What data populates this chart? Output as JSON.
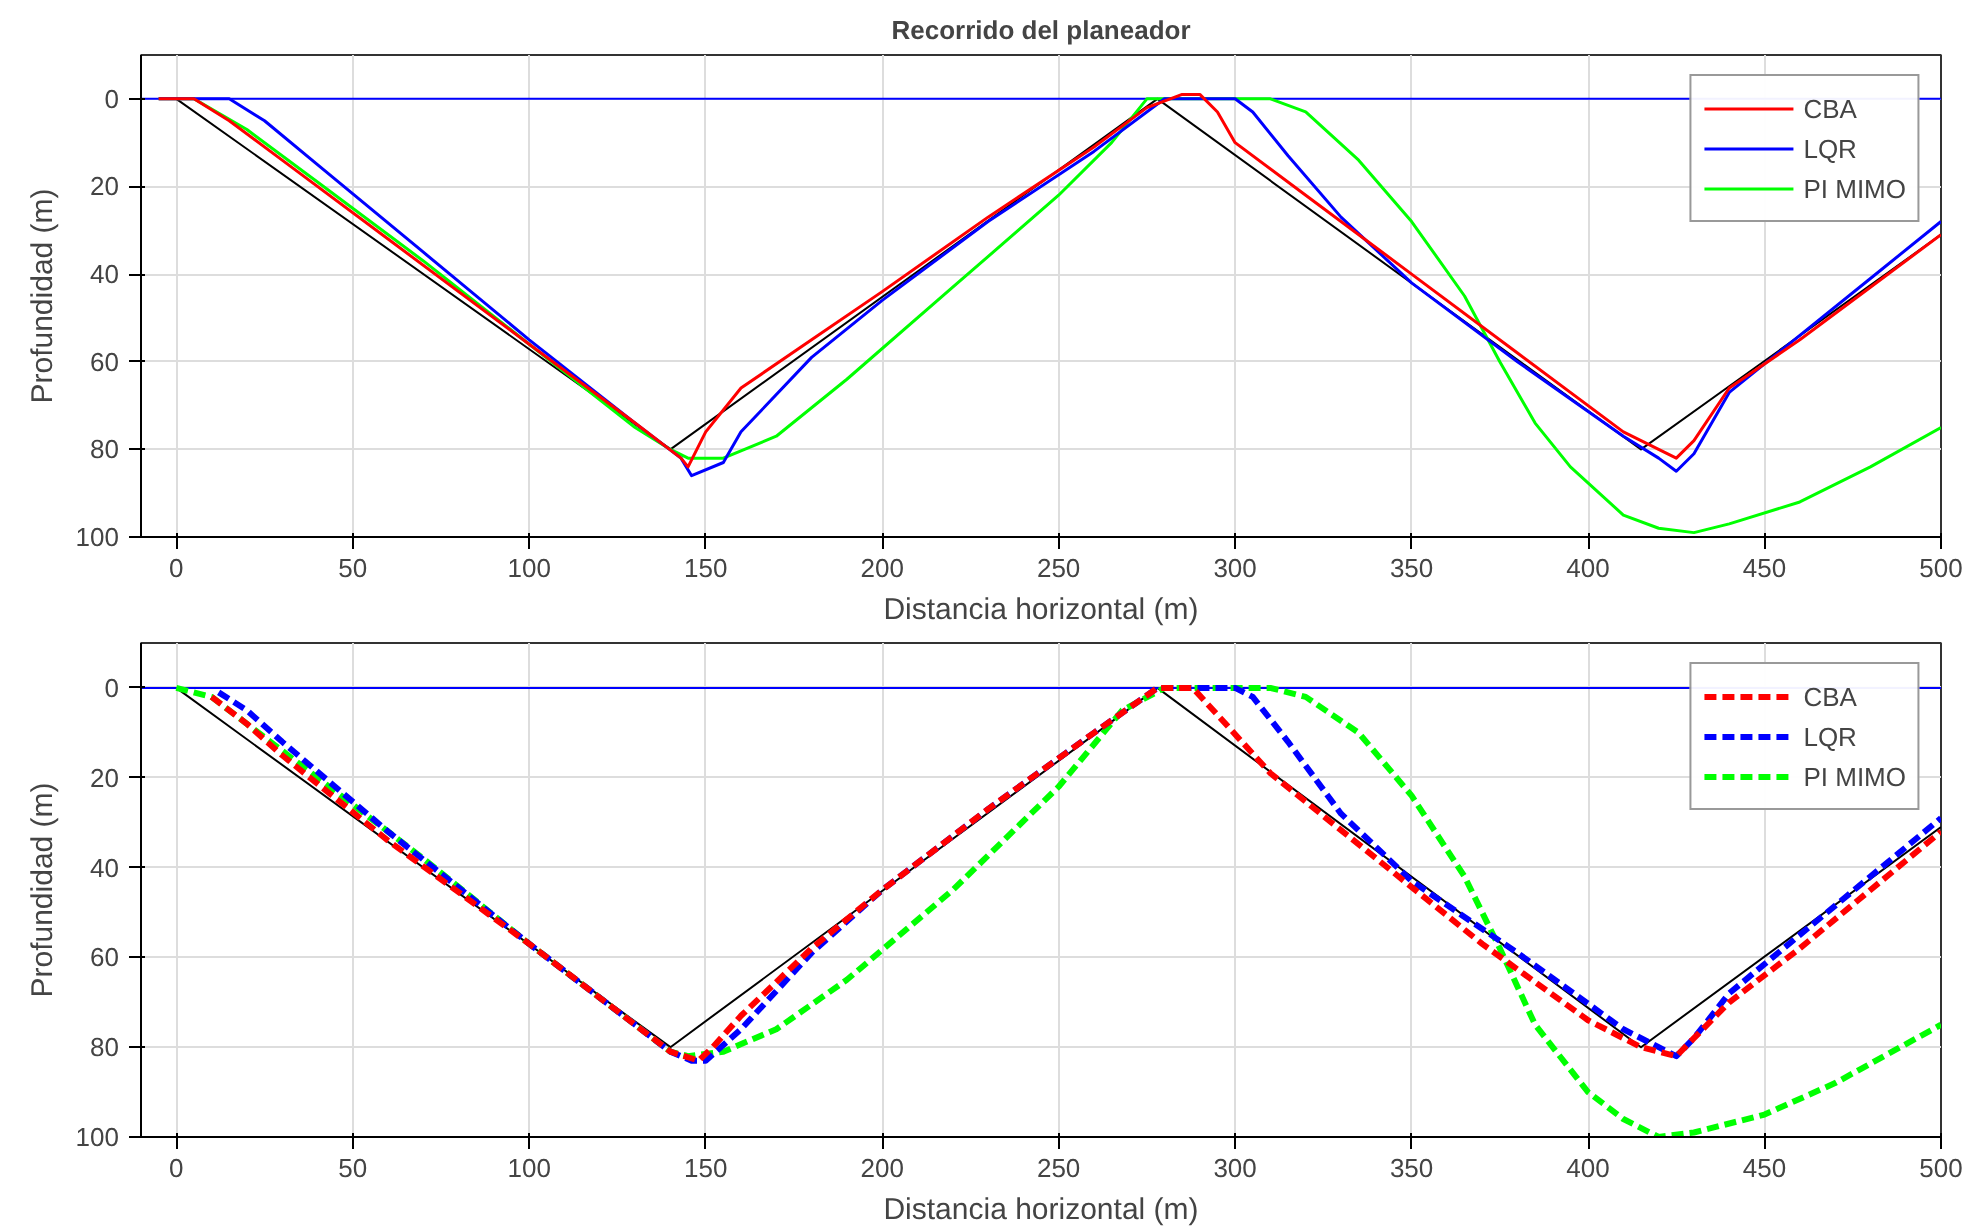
{
  "chart_data": [
    {
      "type": "line",
      "title": "Recorrido del planeador",
      "xlabel": "Distancia horizontal (m)",
      "ylabel": "Profundidad (m)",
      "xlim": [
        -10,
        500
      ],
      "xticks": [
        0,
        50,
        100,
        150,
        200,
        250,
        300,
        350,
        400,
        450,
        500
      ],
      "ylim": [
        100,
        -10
      ],
      "yticks": [
        0,
        20,
        40,
        60,
        80,
        100
      ],
      "grid": true,
      "legend": "top right",
      "series": [
        {
          "color": "#000000",
          "line_style": "solid",
          "x": [
            0,
            140,
            278,
            415,
            500
          ],
          "values": [
            0,
            80,
            0,
            80,
            31
          ]
        },
        {
          "color": "#0000ff",
          "line_style": "solid",
          "x": [
            -10,
            500
          ],
          "values": [
            0,
            0
          ]
        },
        {
          "name": "CBA",
          "color": "#ff0000",
          "line_style": "solid",
          "x": [
            -5,
            5,
            15,
            30,
            60,
            100,
            130,
            143,
            145,
            150,
            160,
            180,
            200,
            230,
            260,
            275,
            285,
            290,
            295,
            300,
            320,
            350,
            380,
            410,
            420,
            425,
            430,
            440,
            460,
            480,
            500
          ],
          "values": [
            0,
            0,
            5,
            14,
            32,
            56,
            74,
            82,
            84,
            76,
            66,
            55,
            44,
            27,
            11,
            2,
            -1,
            -1,
            3,
            10,
            22,
            40,
            58,
            76,
            80,
            82,
            78,
            66,
            55,
            43,
            31
          ]
        },
        {
          "name": "LQR",
          "color": "#0000ff",
          "line_style": "solid",
          "x": [
            -5,
            15,
            25,
            40,
            70,
            100,
            130,
            143,
            146,
            155,
            160,
            180,
            200,
            230,
            260,
            280,
            300,
            305,
            315,
            330,
            350,
            380,
            410,
            420,
            425,
            430,
            440,
            460,
            480,
            500
          ],
          "values": [
            0,
            0,
            5,
            15,
            35,
            55,
            74,
            82,
            86,
            83,
            76,
            59,
            46,
            28,
            12,
            0,
            0,
            3,
            13,
            27,
            42,
            60,
            77,
            82,
            85,
            81,
            67,
            54,
            41,
            28
          ]
        },
        {
          "name": "PI MIMO",
          "color": "#00ff00",
          "line_style": "solid",
          "x": [
            -5,
            5,
            20,
            40,
            70,
            100,
            130,
            140,
            145,
            155,
            170,
            190,
            220,
            250,
            265,
            275,
            290,
            310,
            320,
            335,
            350,
            365,
            375,
            385,
            395,
            410,
            420,
            430,
            440,
            460,
            480,
            500
          ],
          "values": [
            0,
            0,
            7,
            19,
            37,
            56,
            75,
            80,
            82,
            82,
            77,
            64,
            43,
            22,
            10,
            0,
            0,
            0,
            3,
            14,
            28,
            45,
            60,
            74,
            84,
            95,
            98,
            99,
            97,
            92,
            84,
            75
          ]
        }
      ]
    },
    {
      "type": "line",
      "xlabel": "Distancia horizontal (m)",
      "ylabel": "Profundidad (m)",
      "xlim": [
        -10,
        500
      ],
      "xticks": [
        0,
        50,
        100,
        150,
        200,
        250,
        300,
        350,
        400,
        450,
        500
      ],
      "ylim": [
        100,
        -10
      ],
      "yticks": [
        0,
        20,
        40,
        60,
        80,
        100
      ],
      "grid": true,
      "legend": "top right",
      "series": [
        {
          "color": "#000000",
          "line_style": "solid",
          "x": [
            0,
            140,
            278,
            415,
            500
          ],
          "values": [
            0,
            80,
            0,
            80,
            31
          ]
        },
        {
          "color": "#0000ff",
          "line_style": "solid",
          "x": [
            -10,
            500
          ],
          "values": [
            0,
            0
          ]
        },
        {
          "name": "CBA",
          "color": "#ff0000",
          "line_style": "dashed",
          "x": [
            10,
            20,
            30,
            60,
            100,
            140,
            148,
            152,
            160,
            180,
            200,
            230,
            260,
            278,
            288,
            295,
            310,
            340,
            370,
            400,
            415,
            425,
            430,
            440,
            460,
            480,
            500
          ],
          "values": [
            2,
            8,
            15,
            34,
            57,
            81,
            83,
            80,
            73,
            58,
            45,
            27,
            10,
            0,
            0,
            6,
            19,
            38,
            57,
            74,
            80,
            82,
            78,
            70,
            58,
            45,
            32
          ]
        },
        {
          "name": "LQR",
          "color": "#0000ff",
          "line_style": "dashed",
          "x": [
            12,
            20,
            30,
            60,
            100,
            140,
            146,
            150,
            160,
            180,
            200,
            230,
            260,
            278,
            300,
            305,
            315,
            330,
            350,
            380,
            410,
            420,
            425,
            430,
            440,
            460,
            480,
            500
          ],
          "values": [
            1,
            5,
            12,
            32,
            57,
            81,
            83,
            83,
            76,
            59,
            45,
            27,
            10,
            0,
            0,
            2,
            12,
            28,
            43,
            59,
            76,
            80,
            82,
            78,
            68,
            55,
            42,
            29
          ]
        },
        {
          "name": "PI MIMO",
          "color": "#00ff00",
          "line_style": "dashed",
          "x": [
            0,
            10,
            20,
            40,
            70,
            100,
            140,
            145,
            155,
            170,
            190,
            220,
            250,
            268,
            280,
            300,
            310,
            320,
            335,
            350,
            365,
            375,
            385,
            400,
            410,
            420,
            430,
            450,
            470,
            500
          ],
          "values": [
            0,
            2,
            8,
            20,
            38,
            57,
            81,
            82,
            81,
            76,
            65,
            45,
            22,
            5,
            0,
            0,
            0,
            2,
            10,
            24,
            42,
            58,
            75,
            90,
            96,
            100,
            99,
            95,
            88,
            75
          ]
        }
      ]
    }
  ]
}
